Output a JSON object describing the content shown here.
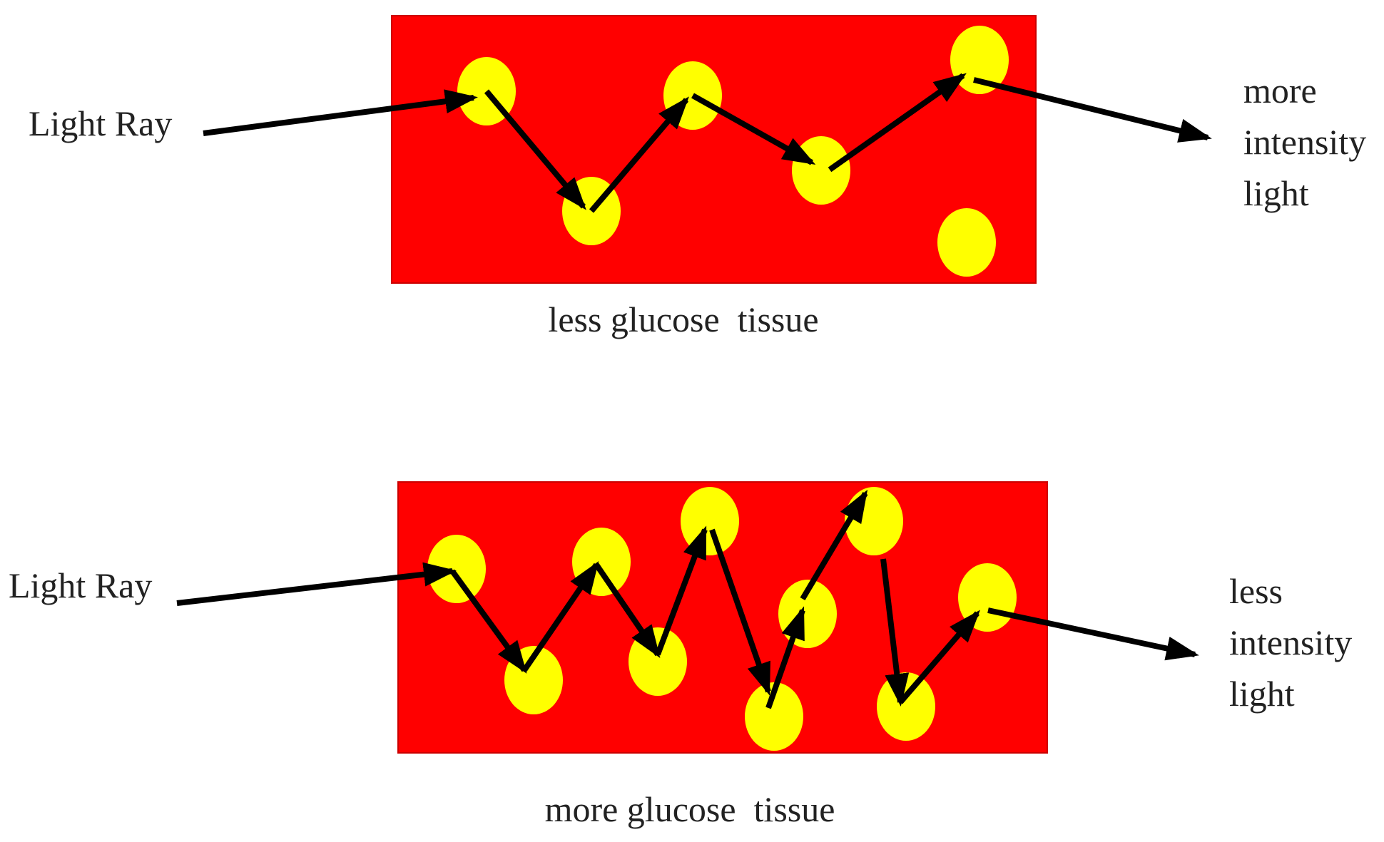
{
  "colors": {
    "tissue": "#ff0000",
    "tissue_border": "#cc0000",
    "particle": "#ffff00",
    "arrow": "#000000",
    "text": "#222222"
  },
  "panels": [
    {
      "input_label": "Light Ray",
      "output_label_lines": [
        "more",
        "intensity",
        "light"
      ],
      "caption": "less glucose  tissue"
    },
    {
      "input_label": "Light Ray",
      "output_label_lines": [
        "less",
        "intensity",
        "light"
      ],
      "caption": "more glucose  tissue"
    }
  ]
}
